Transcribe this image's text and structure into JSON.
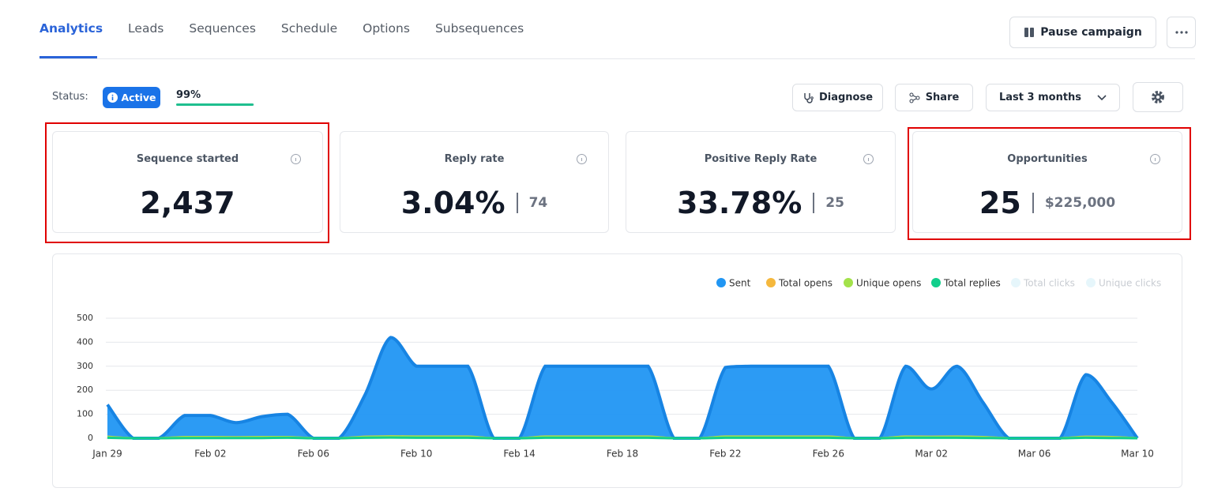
{
  "tabs": [
    {
      "label": "Analytics",
      "active": true
    },
    {
      "label": "Leads"
    },
    {
      "label": "Sequences"
    },
    {
      "label": "Schedule"
    },
    {
      "label": "Options"
    },
    {
      "label": "Subsequences"
    }
  ],
  "header_actions": {
    "pause": "Pause campaign"
  },
  "status": {
    "label": "Status:",
    "badge": "Active",
    "progress": {
      "value": 99,
      "label": "99%"
    }
  },
  "toolbar": {
    "diagnose": "Diagnose",
    "share": "Share",
    "range": "Last 3 months"
  },
  "cards": [
    {
      "title": "Sequence started",
      "value": "2,437",
      "highlighted": true
    },
    {
      "title": "Reply rate",
      "value": "3.04%",
      "count": "74"
    },
    {
      "title": "Positive Reply Rate",
      "value": "33.78%",
      "count": "25"
    },
    {
      "title": "Opportunities",
      "value": "25",
      "count": "$225,000",
      "highlighted": true
    }
  ],
  "chart_data": {
    "type": "area",
    "categories": [
      "Jan 29",
      null,
      null,
      null,
      "Feb 02",
      null,
      null,
      null,
      "Feb 06",
      null,
      null,
      null,
      "Feb 10",
      null,
      null,
      null,
      "Feb 14",
      null,
      null,
      null,
      "Feb 18",
      null,
      null,
      null,
      "Feb 22",
      null,
      null,
      null,
      "Feb 26",
      null,
      null,
      null,
      "Mar 02",
      null,
      null,
      null,
      "Mar 06",
      null,
      null,
      null,
      "Mar 10"
    ],
    "series": [
      {
        "name": "Sent",
        "color": "#2196f3",
        "values": [
          140,
          0,
          0,
          95,
          95,
          65,
          90,
          100,
          0,
          0,
          180,
          420,
          300,
          300,
          300,
          0,
          0,
          300,
          300,
          300,
          300,
          300,
          0,
          0,
          295,
          300,
          300,
          300,
          300,
          0,
          0,
          300,
          205,
          300,
          150,
          0,
          0,
          0,
          265,
          150,
          0
        ]
      },
      {
        "name": "Total opens",
        "color": "#f5b83d",
        "values": [
          6,
          0,
          0,
          5,
          5,
          4,
          5,
          5,
          0,
          0,
          6,
          8,
          7,
          7,
          7,
          0,
          0,
          7,
          7,
          7,
          7,
          7,
          0,
          0,
          7,
          7,
          7,
          7,
          7,
          0,
          0,
          7,
          6,
          7,
          5,
          0,
          0,
          0,
          6,
          5,
          0
        ]
      },
      {
        "name": "Unique opens",
        "color": "#a3e24a",
        "values": [
          5,
          0,
          0,
          4,
          4,
          3,
          4,
          4,
          0,
          0,
          5,
          7,
          6,
          6,
          6,
          0,
          0,
          6,
          6,
          6,
          6,
          6,
          0,
          0,
          6,
          6,
          6,
          6,
          6,
          0,
          0,
          6,
          5,
          6,
          4,
          0,
          0,
          0,
          5,
          4,
          0
        ]
      },
      {
        "name": "Total replies",
        "color": "#12cf8c",
        "values": [
          2,
          0,
          0,
          1,
          1,
          1,
          1,
          2,
          0,
          0,
          2,
          3,
          2,
          2,
          2,
          0,
          0,
          2,
          2,
          2,
          2,
          2,
          0,
          0,
          2,
          2,
          2,
          2,
          2,
          0,
          0,
          2,
          2,
          2,
          1,
          0,
          0,
          0,
          2,
          1,
          0
        ]
      },
      {
        "name": "Total clicks",
        "color": "#e6f6fb",
        "hidden": true
      },
      {
        "name": "Unique clicks",
        "color": "#e6f6fb",
        "hidden": true
      }
    ],
    "ylim": [
      0,
      500
    ],
    "yticks": [
      0,
      100,
      200,
      300,
      400,
      500
    ],
    "grid": true,
    "legend": "top-right"
  }
}
